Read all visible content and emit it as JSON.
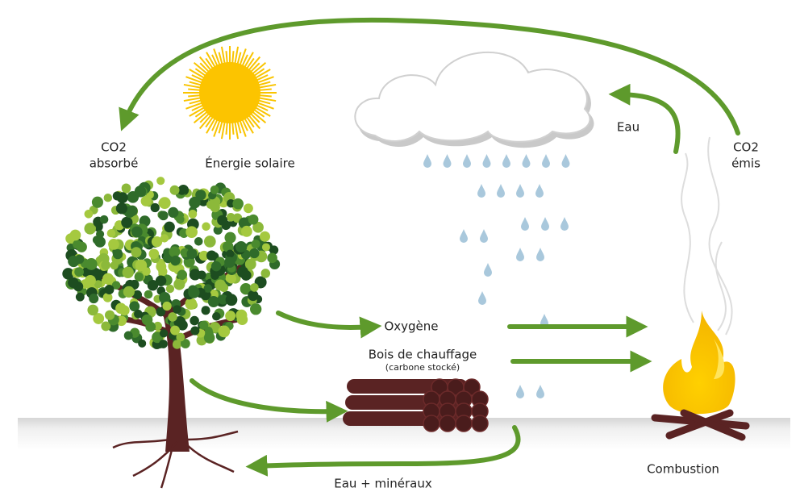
{
  "labels": {
    "co2_absorbe": [
      "CO2",
      "absorbé"
    ],
    "energie_solaire": "Énergie solaire",
    "eau": "Eau",
    "co2_emis": [
      "CO2",
      "émis"
    ],
    "oxygene": "Oxygène",
    "bois": "Bois de chauffage",
    "bois_note": "(carbone stocké)",
    "eau_mineraux": "Eau + minéraux",
    "combustion": "Combustion"
  }
}
